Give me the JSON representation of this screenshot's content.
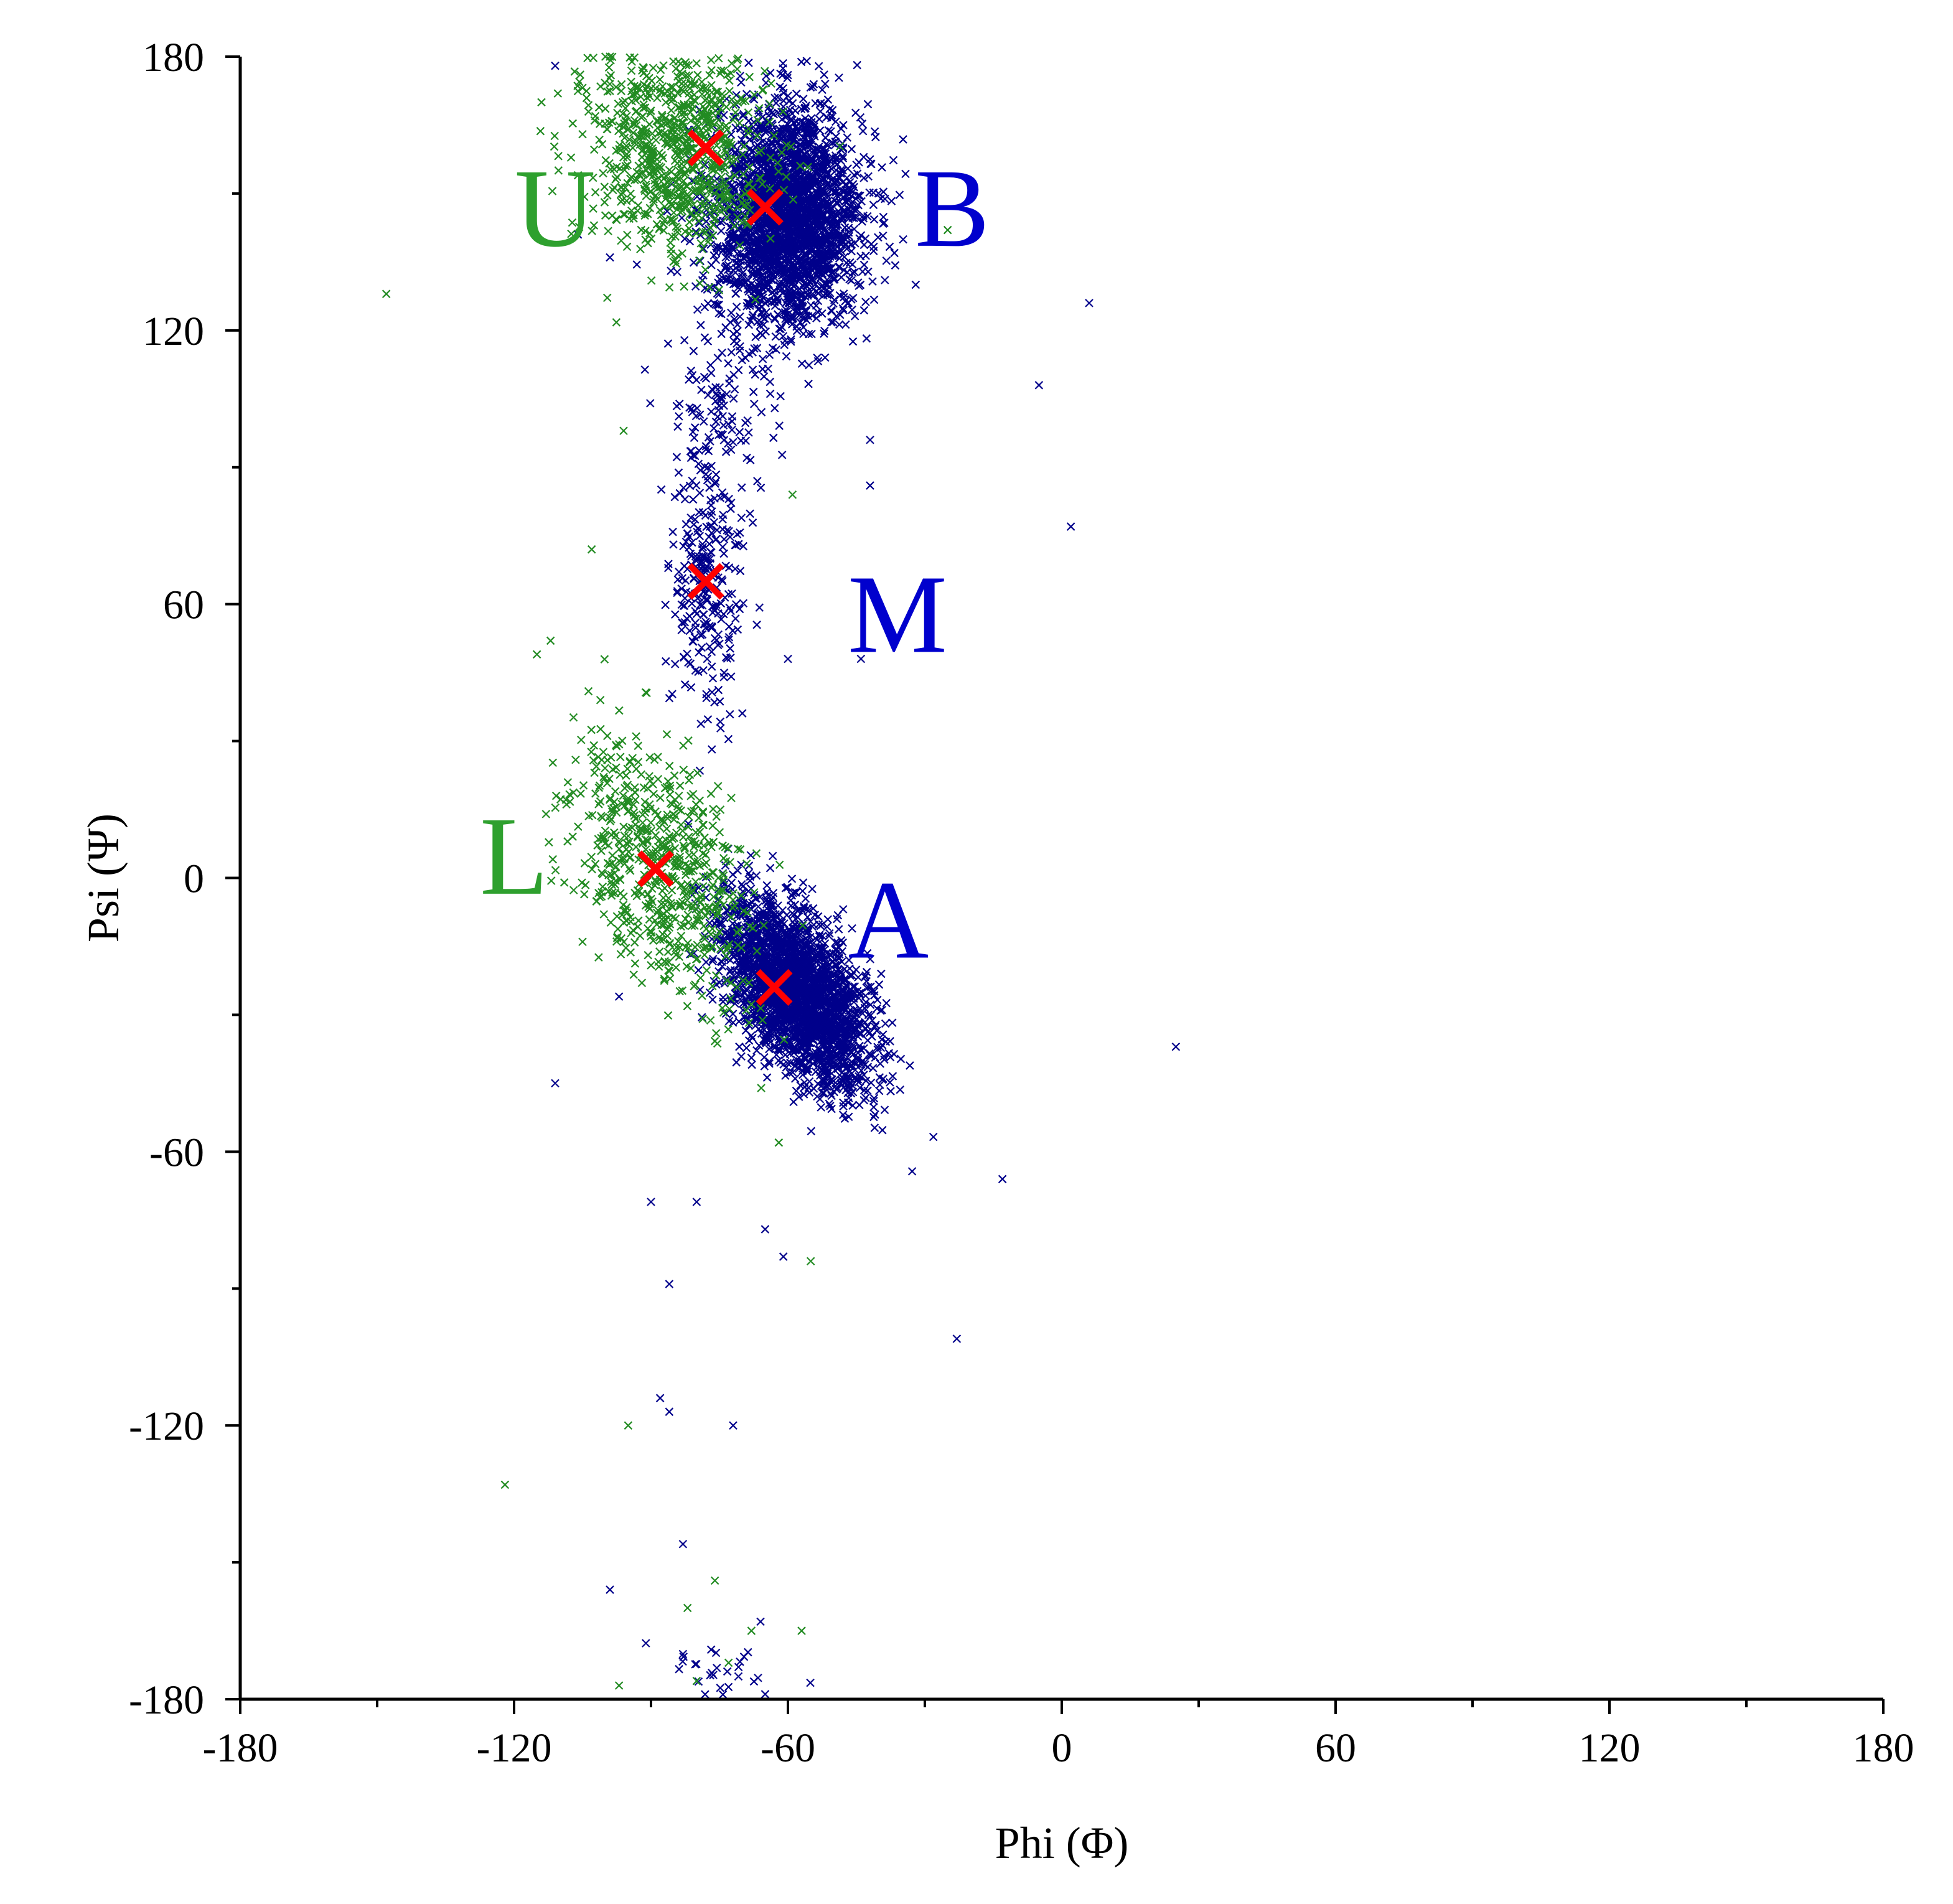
{
  "colors": {
    "series_blue": "#00008B",
    "series_green": "#228B22",
    "center_marker": "#FF0000",
    "label_blue": "#0000CD",
    "label_green": "#2EA02E",
    "axis": "#000000",
    "background": "#FFFFFF"
  },
  "chart_data": {
    "type": "scatter",
    "title": "",
    "xlabel": "Phi (Φ)",
    "ylabel": "Psi (Ψ)",
    "xlim": [
      -180,
      180
    ],
    "ylim": [
      -180,
      180
    ],
    "xticks": [
      "-180",
      "-120",
      "-60",
      "0",
      "60",
      "120",
      "180"
    ],
    "yticks": [
      "180",
      "120",
      "60",
      "0",
      "-60",
      "-120",
      "-180"
    ],
    "grid": false,
    "legend": "none",
    "series": [
      {
        "color": "#00008B",
        "marker": "x",
        "clusters": [
          {
            "center": [
              -60,
              145
            ],
            "sd": [
              8,
              12
            ],
            "rho": 0.0,
            "n": 2600
          },
          {
            "center": [
              -58,
              -25
            ],
            "sd": [
              8,
              10
            ],
            "rho": -0.55,
            "n": 2600
          },
          {
            "center": [
              -78,
              65
            ],
            "sd": [
              4,
              14
            ],
            "rho": 0.0,
            "n": 260
          },
          {
            "center": [
              -75,
              102
            ],
            "sd": [
              6,
              10
            ],
            "rho": 0.0,
            "n": 120
          },
          {
            "center": [
              -78,
              -178
            ],
            "sd": [
              8,
              6
            ],
            "rho": 0.0,
            "n": 40
          }
        ],
        "outliers": [
          [
            6,
            126
          ],
          [
            -5,
            108
          ],
          [
            2,
            77
          ],
          [
            25,
            -37
          ],
          [
            -13,
            -66
          ],
          [
            -23,
            -101
          ],
          [
            -90,
            -71
          ],
          [
            -86,
            -89
          ],
          [
            -88,
            -114
          ],
          [
            -86,
            -117
          ],
          [
            -72,
            -120
          ],
          [
            -99,
            -156
          ],
          [
            -83,
            -146
          ],
          [
            -66,
            -163
          ],
          [
            -111,
            -45
          ],
          [
            -65,
            -77
          ],
          [
            -80,
            -71
          ],
          [
            -61,
            -83
          ],
          [
            -111,
            178
          ],
          [
            -106,
            141
          ],
          [
            -99,
            136
          ],
          [
            -42,
            86
          ],
          [
            -42,
            96
          ],
          [
            -32,
            130
          ],
          [
            -44,
            48
          ],
          [
            -60,
            48
          ],
          [
            -97,
            -26
          ]
        ]
      },
      {
        "color": "#228B22",
        "marker": "x",
        "clusters": [
          {
            "center": [
              -85,
              160
            ],
            "sd": [
              10,
              12
            ],
            "rho": 0.0,
            "n": 850
          },
          {
            "center": [
              -88,
              3
            ],
            "sd": [
              10,
              14
            ],
            "rho": -0.5,
            "n": 650
          }
        ],
        "outliers": [
          [
            -148,
            128
          ],
          [
            -122,
            -133
          ],
          [
            -25,
            142
          ],
          [
            -59,
            84
          ],
          [
            -96,
            98
          ],
          [
            -103,
            72
          ],
          [
            -112,
            52
          ],
          [
            -115,
            49
          ],
          [
            -113,
            14
          ],
          [
            -109,
            -1
          ],
          [
            -105,
            -14
          ],
          [
            -92,
            -23
          ],
          [
            -95,
            -120
          ],
          [
            -62,
            -58
          ],
          [
            -55,
            -84
          ],
          [
            -105,
            163
          ],
          [
            -114,
            170
          ],
          [
            -100,
            180
          ],
          [
            -106,
            154
          ],
          [
            -99,
            180
          ],
          [
            -89,
            173
          ],
          [
            -76,
            -154
          ],
          [
            -73,
            -172
          ],
          [
            -80,
            -176
          ],
          [
            -68,
            -165
          ],
          [
            -57,
            -165
          ],
          [
            -82,
            -160
          ],
          [
            -97,
            -177
          ]
        ]
      }
    ],
    "centers": [
      {
        "label": "U",
        "phi": -78,
        "psi": 160
      },
      {
        "label": "B",
        "phi": -65,
        "psi": 147
      },
      {
        "label": "M",
        "phi": -78,
        "psi": 65
      },
      {
        "label": "L",
        "phi": -89,
        "psi": 2
      },
      {
        "label": "A",
        "phi": -63,
        "psi": -24
      }
    ],
    "annotations": [
      {
        "text": "U",
        "phi": -111,
        "psi": 147,
        "color": "#2EA02E"
      },
      {
        "text": "B",
        "phi": -24,
        "psi": 147,
        "color": "#0000CD"
      },
      {
        "text": "M",
        "phi": -36,
        "psi": 58,
        "color": "#0000CD"
      },
      {
        "text": "L",
        "phi": -120,
        "psi": 5,
        "color": "#2EA02E"
      },
      {
        "text": "A",
        "phi": -38,
        "psi": -9,
        "color": "#0000CD"
      }
    ]
  }
}
